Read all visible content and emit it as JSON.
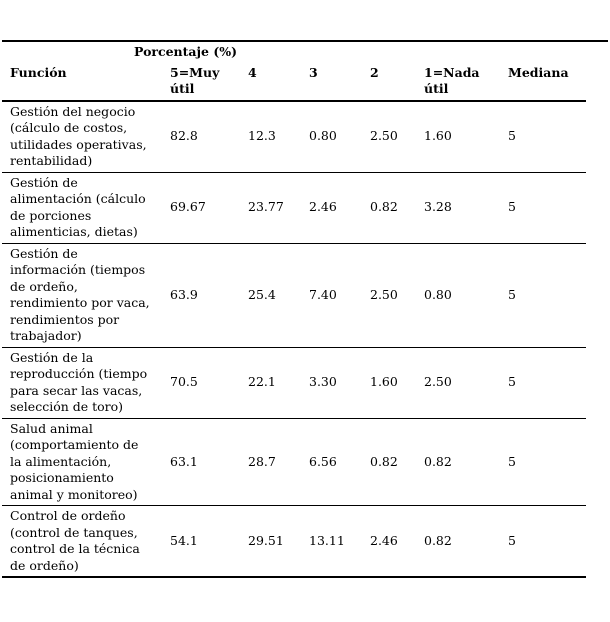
{
  "colors": {
    "text": "#000000",
    "background": "#ffffff",
    "rule": "#000000"
  },
  "table": {
    "spanning_header": "Porcentaje (%)",
    "columns": [
      "Función",
      "5=Muy\nútil",
      "4",
      "3",
      "2",
      "1=Nada\nútil",
      "Mediana"
    ],
    "rows": [
      {
        "funcion": "Gestión del negocio\n(cálculo de costos,\nutilidades operativas,\nrentabilidad)",
        "values": [
          "82.8",
          "12.3",
          "0.80",
          "2.50",
          "1.60"
        ],
        "mediana": "5"
      },
      {
        "funcion": "Gestión de\nalimentación (cálculo\nde porciones\nalimenticias, dietas)",
        "values": [
          "69.67",
          "23.77",
          "2.46",
          "0.82",
          "3.28"
        ],
        "mediana": "5"
      },
      {
        "funcion": "Gestión de\ninformación (tiempos\nde ordeño,\nrendimiento por vaca,\nrendimientos por\ntrabajador)",
        "values": [
          "63.9",
          "25.4",
          "7.40",
          "2.50",
          "0.80"
        ],
        "mediana": "5"
      },
      {
        "funcion": "Gestión de la\nreproducción (tiempo\npara secar las vacas,\nselección de toro)",
        "values": [
          "70.5",
          "22.1",
          "3.30",
          "1.60",
          "2.50"
        ],
        "mediana": "5"
      },
      {
        "funcion": "Salud animal\n(comportamiento de\nla alimentación,\nposicionamiento\nanimal y monitoreo)",
        "values": [
          "63.1",
          "28.7",
          "6.56",
          "0.82",
          "0.82"
        ],
        "mediana": "5"
      },
      {
        "funcion": "Control de ordeño\n(control de tanques,\ncontrol de la técnica\nde ordeño)",
        "values": [
          "54.1",
          "29.51",
          "13.11",
          "2.46",
          "0.82"
        ],
        "mediana": "5"
      }
    ]
  }
}
